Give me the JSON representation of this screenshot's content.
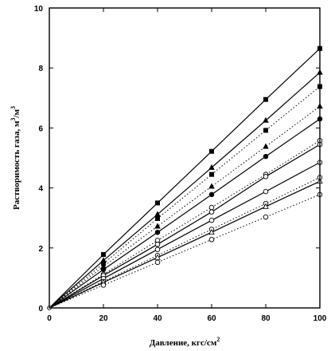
{
  "chart_data": {
    "type": "line",
    "xlabel": "Давление, кгс/см",
    "xlabel_sup": "2",
    "ylabel": "Растворимость газа, м",
    "ylabel_sup1": "3",
    "ylabel_mid": "/м",
    "ylabel_sup2": "3",
    "xlim": [
      0,
      100
    ],
    "ylim": [
      0,
      10
    ],
    "xticks": [
      0,
      20,
      40,
      60,
      80,
      100
    ],
    "yticks": [
      0,
      2,
      4,
      6,
      8,
      10
    ],
    "x": [
      0,
      20,
      40,
      60,
      80,
      100
    ],
    "series": [
      {
        "marker": "square-filled",
        "style": "solid",
        "values": [
          0,
          1.78,
          3.5,
          5.22,
          6.95,
          8.65
        ]
      },
      {
        "marker": "triangle-filled",
        "style": "solid",
        "values": [
          0,
          1.58,
          3.12,
          4.68,
          6.25,
          7.85
        ]
      },
      {
        "marker": "square-filled",
        "style": "dotted",
        "values": [
          0,
          1.48,
          2.98,
          4.45,
          5.92,
          7.38
        ]
      },
      {
        "marker": "triangle-filled",
        "style": "dotted",
        "values": [
          0,
          1.38,
          2.72,
          4.05,
          5.38,
          6.72
        ]
      },
      {
        "marker": "circle-filled",
        "style": "solid",
        "values": [
          0,
          1.28,
          2.52,
          3.78,
          5.05,
          6.3
        ]
      },
      {
        "marker": "circle-open",
        "style": "dotted",
        "values": [
          0,
          1.12,
          2.25,
          3.35,
          4.45,
          5.58
        ]
      },
      {
        "marker": "circle-open",
        "style": "solid",
        "values": [
          0,
          1.08,
          2.12,
          3.2,
          4.38,
          5.45
        ]
      },
      {
        "marker": "circle-open",
        "style": "solid",
        "values": [
          0,
          0.98,
          1.95,
          2.92,
          3.88,
          4.85
        ]
      },
      {
        "marker": "circle-open",
        "style": "dotted",
        "values": [
          0,
          0.88,
          1.75,
          2.62,
          3.48,
          4.35
        ]
      },
      {
        "marker": "triangle-open",
        "style": "solid",
        "values": [
          0,
          0.85,
          1.68,
          2.52,
          3.38,
          4.22
        ]
      },
      {
        "marker": "circle-open",
        "style": "dotted",
        "values": [
          0,
          0.76,
          1.52,
          2.28,
          3.03,
          3.78
        ]
      }
    ],
    "grid": false,
    "legend": "none"
  }
}
